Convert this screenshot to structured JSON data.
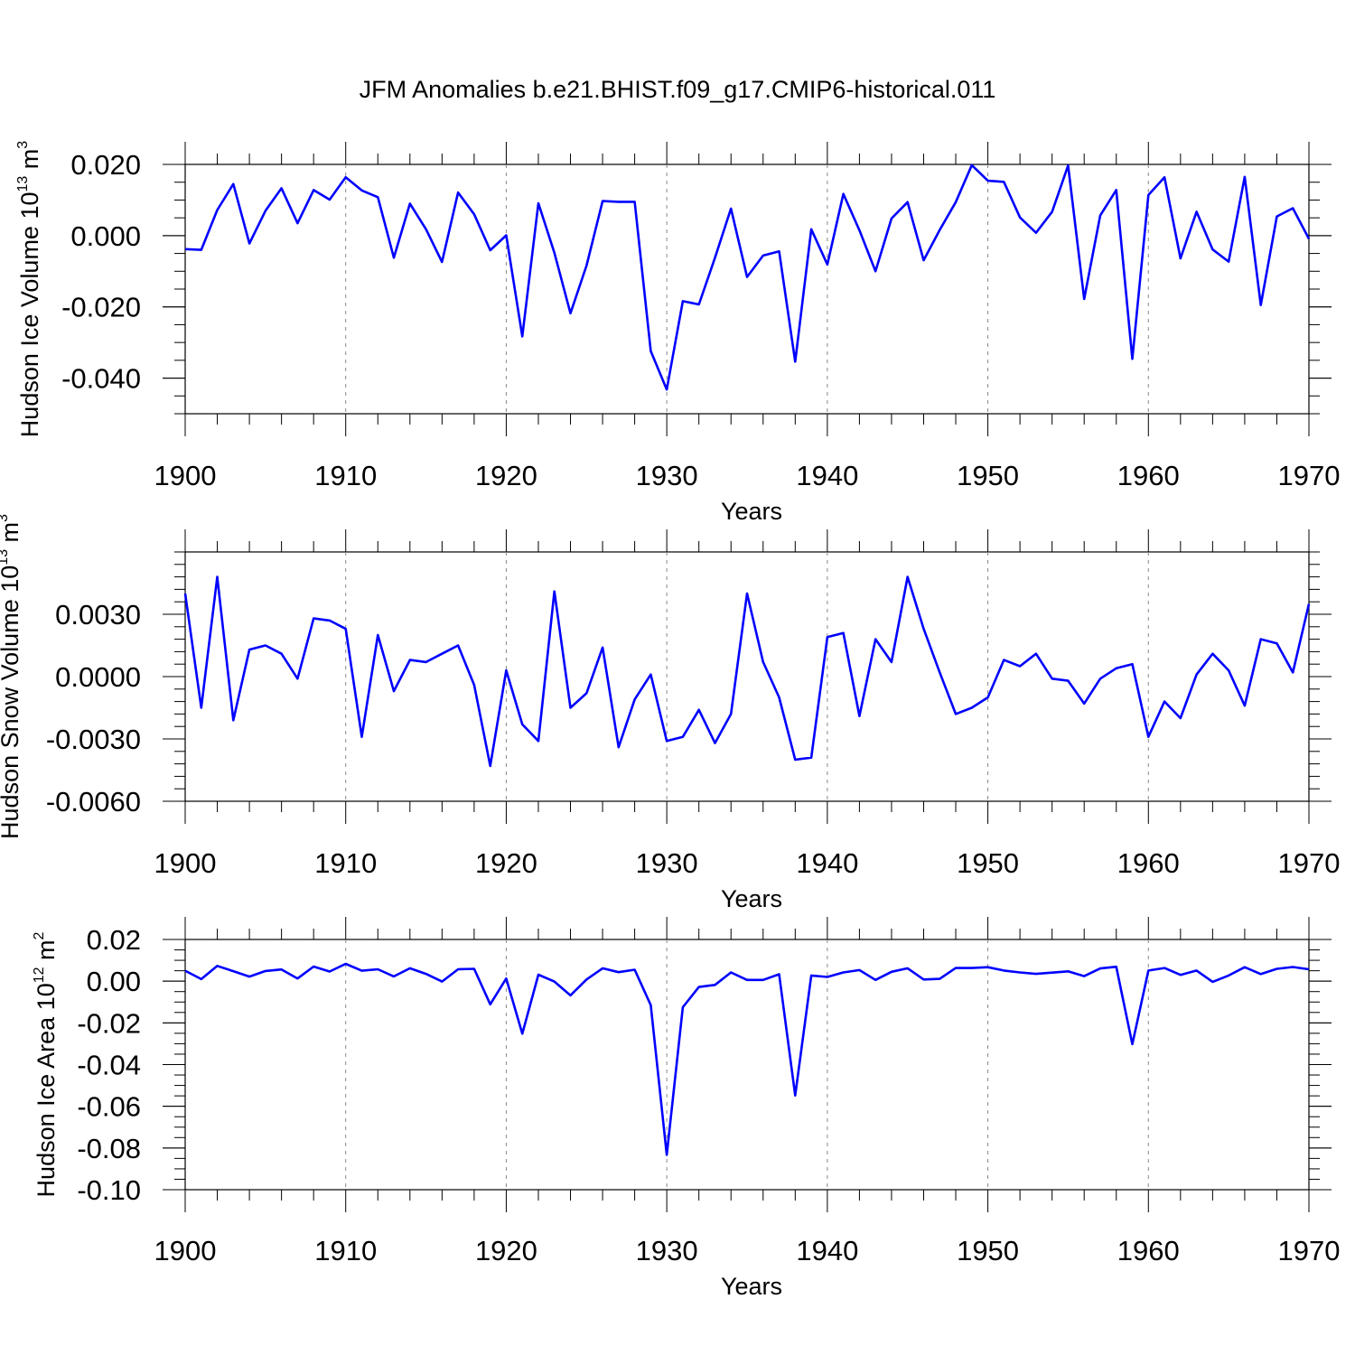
{
  "figure": {
    "title": "JFM Anomalies b.e21.BHIST.f09_g17.CMIP6-historical.011",
    "line_color": "#0000ff"
  },
  "chart_data": [
    {
      "type": "line",
      "name": "ice-volume",
      "ylabel": "Hudson Ice Volume",
      "yunit_base": "10",
      "yunit_exp": "13",
      "yunit_tail": "m",
      "yunit_tail_exp": "3",
      "xlabel": "Years",
      "xlim": [
        1900,
        1970
      ],
      "ylim": [
        -0.05,
        0.02
      ],
      "xticks": [
        "1900",
        "1910",
        "1920",
        "1930",
        "1940",
        "1950",
        "1960",
        "1970"
      ],
      "yticks": [
        {
          "value": 0.02,
          "label": "0.020"
        },
        {
          "value": 0.0,
          "label": "0.000"
        },
        {
          "value": -0.02,
          "label": "-0.020"
        },
        {
          "value": -0.04,
          "label": "-0.040"
        }
      ],
      "yminor_step": 0.005,
      "x": [
        1900,
        1901,
        1902,
        1903,
        1904,
        1905,
        1906,
        1907,
        1908,
        1909,
        1910,
        1911,
        1912,
        1913,
        1914,
        1915,
        1916,
        1917,
        1918,
        1919,
        1920,
        1921,
        1922,
        1923,
        1924,
        1925,
        1926,
        1927,
        1928,
        1929,
        1930,
        1931,
        1932,
        1933,
        1934,
        1935,
        1936,
        1937,
        1938,
        1939,
        1940,
        1941,
        1942,
        1943,
        1944,
        1945,
        1946,
        1947,
        1948,
        1949,
        1950,
        1951,
        1952,
        1953,
        1954,
        1955,
        1956,
        1957,
        1958,
        1959,
        1960,
        1961,
        1962,
        1963,
        1964,
        1965,
        1966,
        1967,
        1968,
        1969,
        1970
      ],
      "values": [
        -0.0038,
        -0.004,
        0.0072,
        0.0145,
        -0.0022,
        0.007,
        0.0133,
        0.0035,
        0.0128,
        0.0101,
        0.0164,
        0.0127,
        0.0108,
        -0.0062,
        0.009,
        0.0018,
        -0.0074,
        0.0121,
        0.006,
        -0.0041,
        0.0001,
        -0.0283,
        0.0091,
        -0.0048,
        -0.0218,
        -0.0084,
        0.0097,
        0.0095,
        0.0095,
        -0.0324,
        -0.0432,
        -0.0184,
        -0.0193,
        -0.0062,
        0.0076,
        -0.0116,
        -0.0056,
        -0.0044,
        -0.0354,
        0.0018,
        -0.0081,
        0.0117,
        0.0015,
        -0.01,
        0.0048,
        0.0094,
        -0.0069,
        0.0016,
        0.0094,
        0.0198,
        0.0154,
        0.0151,
        0.0051,
        0.0008,
        0.0067,
        0.0197,
        -0.0178,
        0.0057,
        0.0128,
        -0.0346,
        0.0114,
        0.0164,
        -0.0064,
        0.0067,
        -0.0039,
        -0.0073,
        0.0165,
        -0.0195,
        0.0054,
        0.0077,
        -0.0009
      ]
    },
    {
      "type": "line",
      "name": "snow-volume",
      "ylabel": "Hudson Snow Volume",
      "yunit_base": "10",
      "yunit_exp": "13",
      "yunit_tail": "m",
      "yunit_tail_exp": "3",
      "xlabel": "Years",
      "xlim": [
        1900,
        1970
      ],
      "ylim": [
        -0.006,
        0.006
      ],
      "xticks": [
        "1900",
        "1910",
        "1920",
        "1930",
        "1940",
        "1950",
        "1960",
        "1970"
      ],
      "yticks": [
        {
          "value": 0.003,
          "label": "0.0030"
        },
        {
          "value": 0.0,
          "label": "0.0000"
        },
        {
          "value": -0.003,
          "label": "-0.0030"
        },
        {
          "value": -0.006,
          "label": "-0.0060"
        }
      ],
      "yminor_step": 0.0006,
      "x": [
        1900,
        1901,
        1902,
        1903,
        1904,
        1905,
        1906,
        1907,
        1908,
        1909,
        1910,
        1911,
        1912,
        1913,
        1914,
        1915,
        1916,
        1917,
        1918,
        1919,
        1920,
        1921,
        1922,
        1923,
        1924,
        1925,
        1926,
        1927,
        1928,
        1929,
        1930,
        1931,
        1932,
        1933,
        1934,
        1935,
        1936,
        1937,
        1938,
        1939,
        1940,
        1941,
        1942,
        1943,
        1944,
        1945,
        1946,
        1947,
        1948,
        1949,
        1950,
        1951,
        1952,
        1953,
        1954,
        1955,
        1956,
        1957,
        1958,
        1959,
        1960,
        1961,
        1962,
        1963,
        1964,
        1965,
        1966,
        1967,
        1968,
        1969,
        1970
      ],
      "values": [
        0.004,
        -0.0015,
        0.0048,
        -0.0021,
        0.0013,
        0.0015,
        0.0011,
        -0.0001,
        0.0028,
        0.0027,
        0.0023,
        -0.0029,
        0.002,
        -0.0007,
        0.0008,
        0.0007,
        0.0011,
        0.0015,
        -0.0004,
        -0.0043,
        0.0003,
        -0.0023,
        -0.0031,
        0.0041,
        -0.0015,
        -0.0008,
        0.0014,
        -0.0034,
        -0.0011,
        0.0001,
        -0.0031,
        -0.0029,
        -0.0016,
        -0.0032,
        -0.0018,
        0.004,
        0.0007,
        -0.001,
        -0.004,
        -0.0039,
        0.0019,
        0.0021,
        -0.0019,
        0.0018,
        0.0007,
        0.0048,
        0.0023,
        0.0002,
        -0.0018,
        -0.0015,
        -0.001,
        0.0008,
        0.0005,
        0.0011,
        -0.0001,
        -0.0002,
        -0.0013,
        -0.0001,
        0.0004,
        0.0006,
        -0.0029,
        -0.0012,
        -0.002,
        0.0001,
        0.0011,
        0.0003,
        -0.0014,
        0.0018,
        0.0016,
        0.0002,
        0.0035
      ]
    },
    {
      "type": "line",
      "name": "ice-area",
      "ylabel": "Hudson Ice Area",
      "yunit_base": "10",
      "yunit_exp": "12",
      "yunit_tail": "m",
      "yunit_tail_exp": "2",
      "xlabel": "Years",
      "xlim": [
        1900,
        1970
      ],
      "ylim": [
        -0.1,
        0.02
      ],
      "xticks": [
        "1900",
        "1910",
        "1920",
        "1930",
        "1940",
        "1950",
        "1960",
        "1970"
      ],
      "yticks": [
        {
          "value": 0.02,
          "label": "0.02"
        },
        {
          "value": 0.0,
          "label": "0.00"
        },
        {
          "value": -0.02,
          "label": "-0.02"
        },
        {
          "value": -0.04,
          "label": "-0.04"
        },
        {
          "value": -0.06,
          "label": "-0.06"
        },
        {
          "value": -0.08,
          "label": "-0.08"
        },
        {
          "value": -0.1,
          "label": "-0.10"
        }
      ],
      "yminor_step": 0.005,
      "x": [
        1900,
        1901,
        1902,
        1903,
        1904,
        1905,
        1906,
        1907,
        1908,
        1909,
        1910,
        1911,
        1912,
        1913,
        1914,
        1915,
        1916,
        1917,
        1918,
        1919,
        1920,
        1921,
        1922,
        1923,
        1924,
        1925,
        1926,
        1927,
        1928,
        1929,
        1930,
        1931,
        1932,
        1933,
        1934,
        1935,
        1936,
        1937,
        1938,
        1939,
        1940,
        1941,
        1942,
        1943,
        1944,
        1945,
        1946,
        1947,
        1948,
        1949,
        1950,
        1951,
        1952,
        1953,
        1954,
        1955,
        1956,
        1957,
        1958,
        1959,
        1960,
        1961,
        1962,
        1963,
        1964,
        1965,
        1966,
        1967,
        1968,
        1969,
        1970
      ],
      "values": [
        0.005,
        0.001,
        0.0073,
        0.0048,
        0.0022,
        0.0049,
        0.0056,
        0.0013,
        0.007,
        0.0046,
        0.0083,
        0.005,
        0.0057,
        0.0023,
        0.0062,
        0.0035,
        -0.0002,
        0.0057,
        0.0059,
        -0.0111,
        0.0013,
        -0.0252,
        0.0031,
        -0.0002,
        -0.0068,
        0.0008,
        0.0062,
        0.0043,
        0.0055,
        -0.0115,
        -0.0833,
        -0.0125,
        -0.0028,
        -0.0018,
        0.0042,
        0.0006,
        0.0006,
        0.0033,
        -0.0548,
        0.0027,
        0.002,
        0.0042,
        0.0053,
        0.0006,
        0.0045,
        0.0062,
        0.0008,
        0.0011,
        0.0063,
        0.0063,
        0.0067,
        0.0051,
        0.0042,
        0.0035,
        0.0041,
        0.0047,
        0.0024,
        0.0061,
        0.0069,
        -0.0302,
        0.0051,
        0.0063,
        0.003,
        0.0051,
        -0.0003,
        0.0027,
        0.0067,
        0.0034,
        0.0059,
        0.0068,
        0.0057
      ]
    }
  ]
}
